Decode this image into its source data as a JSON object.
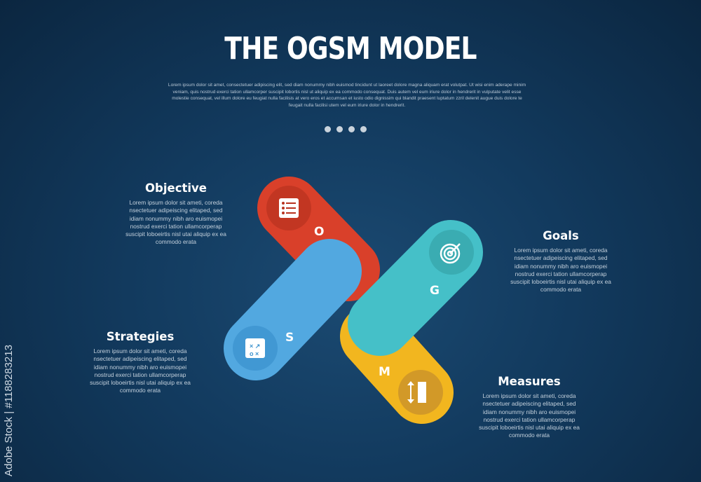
{
  "title": "THE OGSM MODEL",
  "intro": "Lorem ipsum dolor sit amet, consectetuer adipiscing elit, sed diam nonummy nibh euismod tincidunt ut laoreet dolore magna aliquam erat volutpat. Ut wisi enim aderape minim veniam, quis nostrud exerci tation ullamcorper suscipit lobortis nisl ut aliquip ex ea commodo consequat. Duis autem vel eum iriure dolor in hendrerit in vulputate velit esse molestie consequat, vel illum dolore eu feugiat nulla facilisis at vero eros et accumsan et iusto odio dignissim qui blandit praesent luptatum zzril delenit augue duis dolore te feugait nulla facilisi utem vel eum iriure dolor in hendrerit.",
  "sections": {
    "objective": {
      "heading": "Objective",
      "letter": "O",
      "icon": "list-icon",
      "color": "#d9402a",
      "text": "Lorem ipsum dolor sit ameti, coreda nsectetuer adipeiscing elitaped, sed idiam nonummy nibh aro euismopei nostrud exerci tation ullamcorperap suscipit loboeirtis nisl utai aliquip ex ea commodo erata"
    },
    "goals": {
      "heading": "Goals",
      "letter": "G",
      "icon": "target-icon",
      "color": "#45c0c8",
      "text": "Lorem ipsum dolor sit ameti, coreda nsectetuer adipeiscing elitaped, sed idiam nonummy nibh aro euismopei nostrud exerci tation ullamcorperap suscipit loboeirtis nisl utai aliquip ex ea commodo erata"
    },
    "strategies": {
      "heading": "Strategies",
      "letter": "S",
      "icon": "strategy-icon",
      "color": "#52a8e0",
      "text": "Lorem ipsum dolor sit ameti, coreda nsectetuer adipeiscing elitaped, sed idiam nonummy nibh aro euismopei nostrud exerci tation ullamcorperap suscipit loboeirtis nisl utai aliquip ex ea commodo erata"
    },
    "measures": {
      "heading": "Measures",
      "letter": "M",
      "icon": "ruler-icon",
      "color": "#f2b61f",
      "text": "Lorem ipsum dolor sit ameti, coreda nsectetuer adipeiscing elitaped, sed idiam nonummy nibh aro euismopei nostrud exerci tation ullamcorperap suscipit loboeirtis nisl utai aliquip ex ea commodo erata"
    }
  },
  "watermark": "Adobe Stock | #1188283213"
}
